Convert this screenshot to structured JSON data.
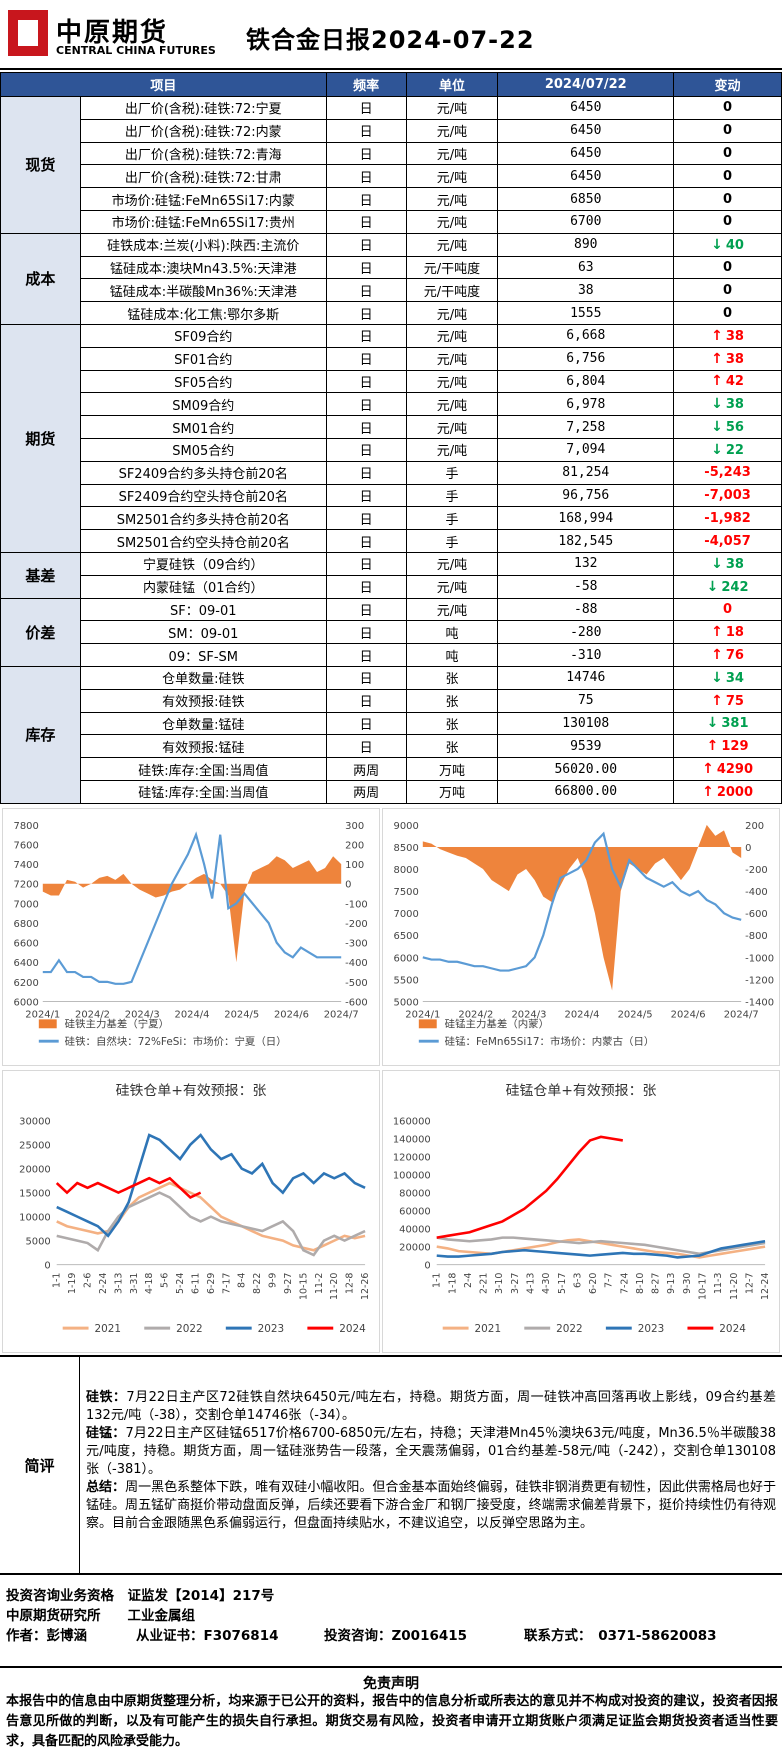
{
  "header": {
    "logo_cn": "中原期货",
    "logo_en": "CENTRAL CHINA FUTURES",
    "title": "铁合金日报2024-07-22"
  },
  "table": {
    "headers": [
      "项目",
      "频率",
      "单位",
      "2024/07/22",
      "变动"
    ],
    "sections": [
      {
        "name": "现货",
        "rows": [
          {
            "item": "出厂价(含税):硅铁:72:宁夏",
            "freq": "日",
            "unit": "元/吨",
            "value": "6450",
            "change": "0",
            "dir": "zero"
          },
          {
            "item": "出厂价(含税):硅铁:72:内蒙",
            "freq": "日",
            "unit": "元/吨",
            "value": "6450",
            "change": "0",
            "dir": "zero"
          },
          {
            "item": "出厂价(含税):硅铁:72:青海",
            "freq": "日",
            "unit": "元/吨",
            "value": "6450",
            "change": "0",
            "dir": "zero"
          },
          {
            "item": "出厂价(含税):硅铁:72:甘肃",
            "freq": "日",
            "unit": "元/吨",
            "value": "6450",
            "change": "0",
            "dir": "zero"
          },
          {
            "item": "市场价:硅锰:FeMn65Si17:内蒙",
            "freq": "日",
            "unit": "元/吨",
            "value": "6850",
            "change": "0",
            "dir": "zero"
          },
          {
            "item": "市场价:硅锰:FeMn65Si17:贵州",
            "freq": "日",
            "unit": "元/吨",
            "value": "6700",
            "change": "0",
            "dir": "zero"
          }
        ]
      },
      {
        "name": "成本",
        "rows": [
          {
            "item": "硅铁成本:兰炭(小料):陕西:主流价",
            "freq": "日",
            "unit": "元/吨",
            "value": "890",
            "change": "40",
            "dir": "down"
          },
          {
            "item": "锰硅成本:澳块Mn43.5%:天津港",
            "freq": "日",
            "unit": "元/干吨度",
            "value": "63",
            "change": "0",
            "dir": "zero"
          },
          {
            "item": "锰硅成本:半碳酸Mn36%:天津港",
            "freq": "日",
            "unit": "元/干吨度",
            "value": "38",
            "change": "0",
            "dir": "zero"
          },
          {
            "item": "锰硅成本:化工焦:鄂尔多斯",
            "freq": "日",
            "unit": "元/吨",
            "value": "1555",
            "change": "0",
            "dir": "zero"
          }
        ]
      },
      {
        "name": "期货",
        "rows": [
          {
            "item": "SF09合约",
            "freq": "日",
            "unit": "元/吨",
            "value": "6,668",
            "change": "38",
            "dir": "up"
          },
          {
            "item": "SF01合约",
            "freq": "日",
            "unit": "元/吨",
            "value": "6,756",
            "change": "38",
            "dir": "up"
          },
          {
            "item": "SF05合约",
            "freq": "日",
            "unit": "元/吨",
            "value": "6,804",
            "change": "42",
            "dir": "up"
          },
          {
            "item": "SM09合约",
            "freq": "日",
            "unit": "元/吨",
            "value": "6,978",
            "change": "38",
            "dir": "down"
          },
          {
            "item": "SM01合约",
            "freq": "日",
            "unit": "元/吨",
            "value": "7,258",
            "change": "56",
            "dir": "down"
          },
          {
            "item": "SM05合约",
            "freq": "日",
            "unit": "元/吨",
            "value": "7,094",
            "change": "22",
            "dir": "down"
          },
          {
            "item": "SF2409合约多头持仓前20名",
            "freq": "日",
            "unit": "手",
            "value": "81,254",
            "change": "-5,243",
            "dir": "neg"
          },
          {
            "item": "SF2409合约空头持仓前20名",
            "freq": "日",
            "unit": "手",
            "value": "96,756",
            "change": "-7,003",
            "dir": "neg"
          },
          {
            "item": "SM2501合约多头持仓前20名",
            "freq": "日",
            "unit": "手",
            "value": "168,994",
            "change": "-1,982",
            "dir": "neg"
          },
          {
            "item": "SM2501合约空头持仓前20名",
            "freq": "日",
            "unit": "手",
            "value": "182,545",
            "change": "-4,057",
            "dir": "neg"
          }
        ]
      },
      {
        "name": "基差",
        "rows": [
          {
            "item": "宁夏硅铁（09合约）",
            "freq": "日",
            "unit": "元/吨",
            "value": "132",
            "change": "38",
            "dir": "down"
          },
          {
            "item": "内蒙硅锰（01合约）",
            "freq": "日",
            "unit": "元/吨",
            "value": "-58",
            "change": "242",
            "dir": "down"
          }
        ]
      },
      {
        "name": "价差",
        "rows": [
          {
            "item": "SF：09-01",
            "freq": "日",
            "unit": "元/吨",
            "value": "-88",
            "change": "0",
            "dir": "neg"
          },
          {
            "item": "SM：09-01",
            "freq": "日",
            "unit": "吨",
            "value": "-280",
            "change": "18",
            "dir": "up"
          },
          {
            "item": "09：SF-SM",
            "freq": "日",
            "unit": "吨",
            "value": "-310",
            "change": "76",
            "dir": "up"
          }
        ]
      },
      {
        "name": "库存",
        "rows": [
          {
            "item": "仓单数量:硅铁",
            "freq": "日",
            "unit": "张",
            "value": "14746",
            "change": "34",
            "dir": "down"
          },
          {
            "item": "有效预报:硅铁",
            "freq": "日",
            "unit": "张",
            "value": "75",
            "change": "75",
            "dir": "up"
          },
          {
            "item": "仓单数量:锰硅",
            "freq": "日",
            "unit": "张",
            "value": "130108",
            "change": "381",
            "dir": "down"
          },
          {
            "item": "有效预报:锰硅",
            "freq": "日",
            "unit": "张",
            "value": "9539",
            "change": "129",
            "dir": "up"
          },
          {
            "item": "硅铁:库存:全国:当周值",
            "freq": "两周",
            "unit": "万吨",
            "value": "56020.00",
            "change": "4290",
            "dir": "up"
          },
          {
            "item": "硅锰:库存:全国:当周值",
            "freq": "两周",
            "unit": "万吨",
            "value": "66800.00",
            "change": "2000",
            "dir": "up"
          }
        ]
      }
    ]
  },
  "chart_data": [
    {
      "type": "line",
      "title": "",
      "x_ticks": [
        "2024/1",
        "2024/2",
        "2024/3",
        "2024/4",
        "2024/5",
        "2024/6",
        "2024/7"
      ],
      "ylim": [
        6000,
        7800
      ],
      "y2lim": [
        -600,
        300
      ],
      "y_ticks": [
        6000,
        6200,
        6400,
        6600,
        6800,
        7000,
        7200,
        7400,
        7600,
        7800
      ],
      "y2_ticks": [
        -600,
        -500,
        -400,
        -300,
        -200,
        -100,
        0,
        100,
        200,
        300
      ],
      "series": [
        {
          "name": "硅铁主力基差（宁夏）",
          "kind": "area",
          "axis": "right",
          "color": "#ed7d31",
          "values": [
            -40,
            -60,
            -60,
            20,
            10,
            -20,
            0,
            30,
            40,
            20,
            50,
            0,
            -30,
            -50,
            -70,
            -60,
            -40,
            -30,
            0,
            30,
            50,
            20,
            0,
            -60,
            -400,
            -40,
            60,
            80,
            100,
            140,
            120,
            80,
            100,
            120,
            60,
            80,
            140,
            100
          ]
        },
        {
          "name": "硅铁：自然块：72%FeSi：市场价：宁夏（日）",
          "kind": "line",
          "axis": "left",
          "color": "#5b9bd5",
          "values": [
            6300,
            6300,
            6420,
            6300,
            6300,
            6250,
            6250,
            6200,
            6200,
            6180,
            6180,
            6200,
            6400,
            6600,
            6800,
            7000,
            7200,
            7350,
            7500,
            7700,
            7400,
            7050,
            7700,
            6950,
            7000,
            7100,
            7000,
            6900,
            6800,
            6600,
            6500,
            6450,
            6550,
            6500,
            6450,
            6450,
            6450,
            6450
          ]
        }
      ]
    },
    {
      "type": "line",
      "title": "",
      "x_ticks": [
        "2024/1",
        "2024/2",
        "2024/3",
        "2024/4",
        "2024/5",
        "2024/6",
        "2024/7"
      ],
      "ylim": [
        5000,
        9000
      ],
      "y2lim": [
        -1400,
        200
      ],
      "y_ticks": [
        5000,
        5500,
        6000,
        6500,
        7000,
        7500,
        8000,
        8500,
        9000
      ],
      "y2_ticks": [
        -1400,
        -1200,
        -1000,
        -800,
        -600,
        -400,
        -200,
        0,
        200
      ],
      "series": [
        {
          "name": "硅锰主力基差（内蒙）",
          "kind": "area",
          "axis": "right",
          "color": "#ed7d31",
          "values": [
            50,
            30,
            -20,
            -50,
            -80,
            -100,
            -150,
            -200,
            -300,
            -350,
            -400,
            -250,
            -200,
            -300,
            -450,
            -500,
            -350,
            -200,
            -100,
            -300,
            -600,
            -1000,
            -1300,
            -400,
            -150,
            -200,
            -250,
            -150,
            -100,
            -200,
            -300,
            -200,
            0,
            200,
            100,
            150,
            -50,
            -100
          ]
        },
        {
          "name": "硅锰：FeMn65Si17：市场价：内蒙古（日）",
          "kind": "line",
          "axis": "left",
          "color": "#5b9bd5",
          "values": [
            6000,
            5950,
            5950,
            5900,
            5900,
            5850,
            5800,
            5800,
            5750,
            5700,
            5700,
            5750,
            5800,
            6000,
            6500,
            7200,
            7800,
            7900,
            8000,
            8200,
            8600,
            8800,
            8000,
            7600,
            8200,
            8000,
            7800,
            7700,
            7600,
            7700,
            7500,
            7400,
            7500,
            7300,
            7200,
            7000,
            6900,
            6850
          ]
        }
      ]
    },
    {
      "type": "line",
      "title": "硅铁仓单+有效预报：张",
      "x_ticks": [
        "1-1",
        "1-19",
        "2-6",
        "2-24",
        "3-13",
        "3-31",
        "4-18",
        "5-6",
        "5-24",
        "6-11",
        "6-29",
        "7-17",
        "8-4",
        "8-22",
        "9-9",
        "9-27",
        "10-15",
        "11-2",
        "11-20",
        "12-8",
        "12-26"
      ],
      "ylim": [
        0,
        30000
      ],
      "y_ticks": [
        0,
        5000,
        10000,
        15000,
        20000,
        25000,
        30000
      ],
      "series": [
        {
          "name": "2021",
          "color": "#f4b183",
          "values": [
            9000,
            8000,
            7500,
            7000,
            6500,
            7000,
            9000,
            12000,
            14000,
            15000,
            16000,
            17000,
            16000,
            15000,
            14000,
            12000,
            10000,
            9000,
            8000,
            7000,
            6000,
            5500,
            5000,
            4000,
            3500,
            3000,
            4000,
            5000,
            6000,
            5500,
            6000
          ]
        },
        {
          "name": "2022",
          "color": "#afabab",
          "values": [
            6000,
            5500,
            5000,
            4500,
            3000,
            7000,
            10000,
            12000,
            13000,
            14000,
            15000,
            14000,
            12000,
            10000,
            9000,
            10000,
            9000,
            8500,
            8000,
            7500,
            7000,
            8000,
            9000,
            7000,
            3000,
            2000,
            5000,
            6000,
            5000,
            6000,
            7000
          ]
        },
        {
          "name": "2023",
          "color": "#2e75b6",
          "values": [
            12000,
            11000,
            10000,
            9000,
            8000,
            6000,
            9000,
            13000,
            20000,
            27000,
            26000,
            24000,
            22000,
            25000,
            27000,
            24000,
            22000,
            23000,
            20000,
            19000,
            21000,
            17000,
            15000,
            18000,
            19000,
            17000,
            19000,
            18000,
            19000,
            17000,
            16000
          ]
        },
        {
          "name": "2024",
          "color": "#ff0000",
          "values": [
            17000,
            15000,
            17000,
            16000,
            17000,
            16000,
            15000,
            16000,
            17000,
            18000,
            17000,
            18000,
            16000,
            14000,
            15000
          ]
        }
      ]
    },
    {
      "type": "line",
      "title": "硅锰仓单+有效预报：张",
      "x_ticks": [
        "1-1",
        "1-18",
        "2-4",
        "2-21",
        "3-10",
        "3-27",
        "4-13",
        "4-30",
        "5-17",
        "6-3",
        "6-20",
        "7-7",
        "7-24",
        "8-10",
        "8-27",
        "9-13",
        "9-30",
        "10-17",
        "11-3",
        "11-20",
        "12-7",
        "12-24"
      ],
      "ylim": [
        0,
        160000
      ],
      "y_ticks": [
        0,
        20000,
        40000,
        60000,
        80000,
        100000,
        120000,
        140000,
        160000
      ],
      "series": [
        {
          "name": "2021",
          "color": "#f4b183",
          "values": [
            20000,
            18000,
            15000,
            14000,
            13000,
            12000,
            14000,
            16000,
            18000,
            20000,
            22000,
            25000,
            27000,
            28000,
            26000,
            24000,
            22000,
            20000,
            18000,
            16000,
            14000,
            13000,
            12000,
            10000,
            8000,
            10000,
            12000,
            14000,
            16000,
            18000,
            20000
          ]
        },
        {
          "name": "2022",
          "color": "#afabab",
          "values": [
            30000,
            28000,
            27000,
            26000,
            27000,
            28000,
            30000,
            30000,
            29000,
            28000,
            27000,
            26000,
            25000,
            24000,
            25000,
            26000,
            25000,
            24000,
            23000,
            22000,
            20000,
            18000,
            16000,
            14000,
            12000,
            14000,
            16000,
            18000,
            20000,
            22000,
            24000
          ]
        },
        {
          "name": "2023",
          "color": "#2e75b6",
          "values": [
            10000,
            9000,
            9000,
            10000,
            11000,
            12000,
            14000,
            15000,
            16000,
            15000,
            14000,
            13000,
            12000,
            11000,
            10000,
            11000,
            12000,
            13000,
            12000,
            12000,
            11000,
            10000,
            8000,
            9000,
            10000,
            14000,
            18000,
            20000,
            22000,
            24000,
            26000
          ]
        },
        {
          "name": "2024",
          "color": "#ff0000",
          "values": [
            30000,
            32000,
            34000,
            36000,
            40000,
            44000,
            48000,
            55000,
            62000,
            72000,
            82000,
            95000,
            110000,
            125000,
            138000,
            142000,
            140000,
            138000
          ]
        }
      ]
    }
  ],
  "summary": {
    "label": "简评",
    "p1_head": "硅铁：",
    "p1": "7月22日主产区72硅铁自然块6450元/吨左右，持稳。期货方面，周一硅铁冲高回落再收上影线，09合约基差132元/吨（-38），交割仓单14746张（-34）。",
    "p2_head": "硅锰：",
    "p2": "7月22日主产区硅锰6517价格6700-6850元/左右，持稳；天津港Mn45％澳块63元/吨度，Mn36.5％半碳酸38元/吨度，持稳。期货方面，周一锰硅涨势告一段落，全天震荡偏弱，01合约基差-58元/吨（-242），交割仓单130108张（-381）。",
    "p3_head": "总结：",
    "p3": "周一黑色系整体下跌，唯有双硅小幅收阳。但合金基本面始终偏弱，硅铁非钢消费更有韧性，因此供需格局也好于锰硅。周五锰矿商挺价带动盘面反弹，后续还要看下游合金厂和钢厂接受度，终端需求偏差背景下，挺价持续性仍有待观察。目前合金跟随黑色系偏弱运行，但盘面持续贴水，不建议追空，以反弹空思路为主。"
  },
  "footer": {
    "qual": "投资咨询业务资格　证监发【2014】217号",
    "org": "中原期货研究所　　工业金属组",
    "author": "作者：彭博涵",
    "cert": "从业证书：F3076814",
    "consult": "投资咨询：Z0016415",
    "contact": "联系方式：　0371-58620083",
    "disclaimer_title": "免责声明",
    "disclaimer": "本报告中的信息由中原期货整理分析，均来源于已公开的资料，报告中的信息分析或所表达的意见并不构成对投资的建议，投资者因报告意见所做的判断，以及有可能产生的损失自行承担。期货交易有风险，投资者申请开立期货账户须满足证监会期货投资者适当性要求，具备匹配的风险承受能力。"
  }
}
